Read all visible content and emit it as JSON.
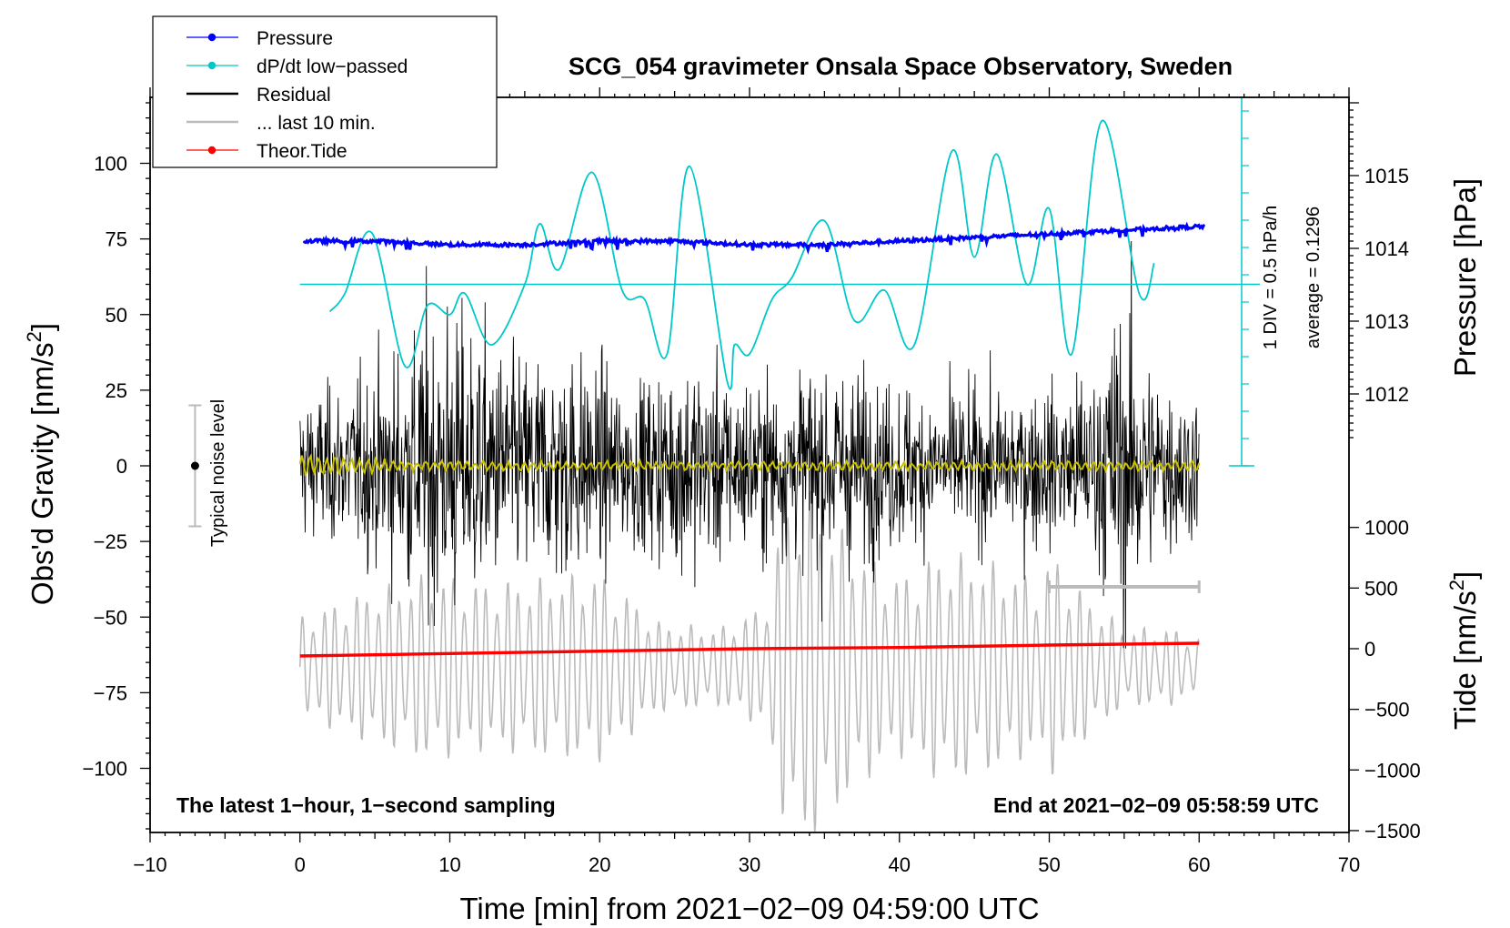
{
  "chart_data": {
    "type": "line",
    "title": "SCG_054 gravimeter Onsala Space Observatory, Sweden",
    "xlabel": "Time [min] from 2021−02−09 04:59:00 UTC",
    "ylabel_left": "Obs'd Gravity [nm/s²]",
    "ylabel_right_top": "Pressure [hPa]",
    "ylabel_right_bottom": "Tide [nm/s²]",
    "xlim": [
      -10,
      70
    ],
    "ylim_left": [
      -120,
      120
    ],
    "x_ticks": [
      "−10",
      "0",
      "10",
      "20",
      "30",
      "40",
      "50",
      "60",
      "70"
    ],
    "x_tick_values": [
      -10,
      0,
      10,
      20,
      30,
      40,
      50,
      60,
      70
    ],
    "y_left_ticks": [
      "100",
      "75",
      "50",
      "25",
      "0",
      "−25",
      "−50",
      "−75",
      "−100"
    ],
    "y_left_tick_values": [
      100,
      75,
      50,
      25,
      0,
      -25,
      -50,
      -75,
      -100
    ],
    "pressure_ticks": [
      "1015",
      "1014",
      "1013",
      "1012"
    ],
    "pressure_tick_values": [
      1015,
      1014,
      1013,
      1012
    ],
    "pressure_range": [
      1011,
      1016
    ],
    "tide_ticks": [
      "1000",
      "500",
      "0",
      "−500",
      "−1000",
      "−1500"
    ],
    "tide_tick_values": [
      1000,
      500,
      0,
      -500,
      -1000,
      -1500
    ],
    "tide_range": [
      -1500,
      1500
    ],
    "series": [
      {
        "name": "Pressure",
        "color": "#0000ff",
        "unit": "hPa",
        "x": [
          0,
          5,
          10,
          15,
          20,
          25,
          30,
          35,
          40,
          45,
          50,
          55,
          60
        ],
        "values": [
          1014.1,
          1014.1,
          1014.05,
          1014.05,
          1014.1,
          1014.1,
          1014.05,
          1014.05,
          1014.1,
          1014.15,
          1014.2,
          1014.25,
          1014.3
        ]
      },
      {
        "name": "dP/dt low−passed",
        "color": "#00c8c8",
        "x": [
          2,
          3,
          4.8,
          7,
          8.5,
          10,
          11,
          12.8,
          15,
          16,
          17.3,
          19.5,
          21.5,
          23,
          24.5,
          26,
          28.5,
          29,
          30,
          31.5,
          32.8,
          35,
          37,
          39,
          41,
          43.5,
          45,
          46.5,
          48.5,
          50,
          51.5,
          53.5,
          56,
          57
        ],
        "values": [
          51,
          57,
          77,
          33,
          53,
          50,
          57,
          40,
          60,
          80,
          65,
          97,
          58,
          55,
          37,
          99,
          28,
          40,
          37,
          55,
          62,
          81,
          48,
          58,
          40,
          104,
          69,
          103,
          60,
          85,
          37,
          114,
          57,
          67
        ]
      },
      {
        "name": "Residual",
        "color": "#000000",
        "x": [
          0,
          60
        ],
        "values": [
          0,
          0
        ]
      },
      {
        "name": "... last 10 min.",
        "color": "#bbbbbb",
        "x": [
          0,
          60
        ],
        "values": [
          0,
          0
        ]
      },
      {
        "name": "Theor.Tide",
        "color": "#ff0000",
        "unit": "nm/s²",
        "x": [
          0,
          10,
          20,
          30,
          40,
          50,
          60
        ],
        "values": [
          -60,
          -40,
          -20,
          0,
          10,
          30,
          45
        ]
      }
    ],
    "dpdt_baseline": 60,
    "scale_bar_label": "1 DIV = 0.5 hPa/h",
    "average_label": "average = 0.1296",
    "noise_label": "Typical noise level",
    "noise_level": [
      -20,
      20
    ],
    "latest_label": "The latest 1−hour, 1−second sampling",
    "end_label": "End at 2021−02−09 05:58:59 UTC"
  }
}
